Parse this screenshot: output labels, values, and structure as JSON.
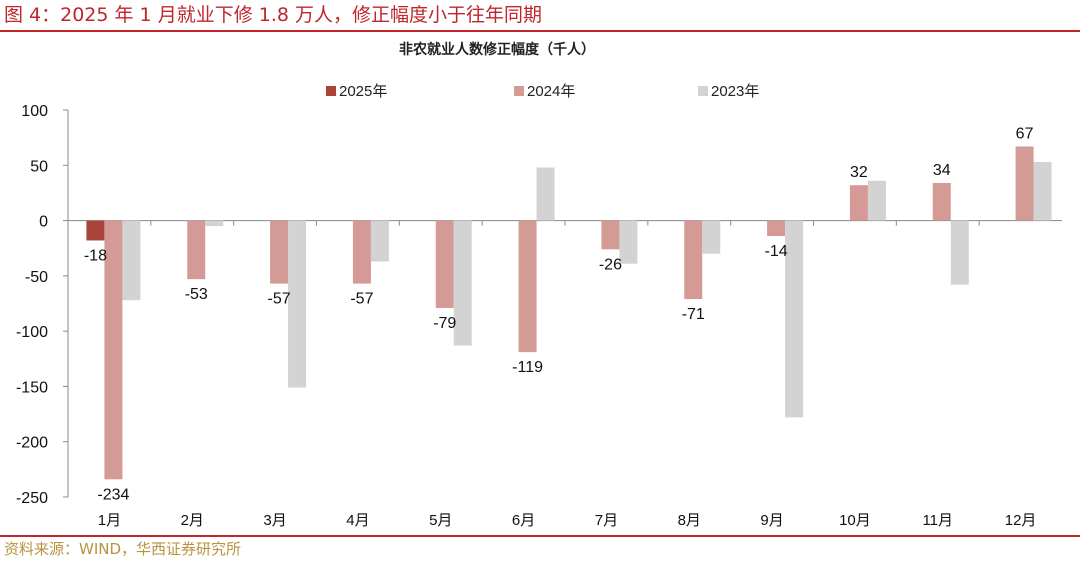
{
  "header": {
    "title": "图 4：2025 年 1 月就业下修 1.8 万人，修正幅度小于往年同期"
  },
  "footer": {
    "source": "资料来源：WIND，华西证券研究所"
  },
  "colors": {
    "accent": "#c0262c",
    "source_text": "#b8923e"
  },
  "chart_data": {
    "type": "bar",
    "title": "非农就业人数修正幅度（千人）",
    "categories": [
      "1月",
      "2月",
      "3月",
      "4月",
      "5月",
      "6月",
      "7月",
      "8月",
      "9月",
      "10月",
      "11月",
      "12月"
    ],
    "series": [
      {
        "name": "2025年",
        "color": "#a8443a",
        "values": [
          -18,
          null,
          null,
          null,
          null,
          null,
          null,
          null,
          null,
          null,
          null,
          null
        ]
      },
      {
        "name": "2024年",
        "color": "#d49a95",
        "values": [
          -234,
          -53,
          -57,
          -57,
          -79,
          -119,
          -26,
          -71,
          -14,
          32,
          34,
          67
        ]
      },
      {
        "name": "2023年",
        "color": "#d3d3d3",
        "values": [
          -72,
          -5,
          -151,
          -37,
          -113,
          48,
          -39,
          -30,
          -178,
          36,
          -58,
          53
        ]
      }
    ],
    "data_labels": [
      {
        "series": 0,
        "category": 0,
        "text": "-18"
      },
      {
        "series": 1,
        "category": 0,
        "text": "-234"
      },
      {
        "series": 1,
        "category": 1,
        "text": "-53"
      },
      {
        "series": 1,
        "category": 2,
        "text": "-57"
      },
      {
        "series": 1,
        "category": 3,
        "text": "-57"
      },
      {
        "series": 1,
        "category": 4,
        "text": "-79"
      },
      {
        "series": 1,
        "category": 5,
        "text": "-119"
      },
      {
        "series": 1,
        "category": 6,
        "text": "-26"
      },
      {
        "series": 1,
        "category": 7,
        "text": "-71"
      },
      {
        "series": 1,
        "category": 8,
        "text": "-14"
      },
      {
        "series": 1,
        "category": 9,
        "text": "32"
      },
      {
        "series": 1,
        "category": 10,
        "text": "34"
      },
      {
        "series": 1,
        "category": 11,
        "text": "67"
      }
    ],
    "yticks": [
      100,
      50,
      0,
      -50,
      -100,
      -150,
      -200,
      -250
    ],
    "ylim": [
      -250,
      100
    ],
    "legend_position": "top",
    "grid": false
  }
}
